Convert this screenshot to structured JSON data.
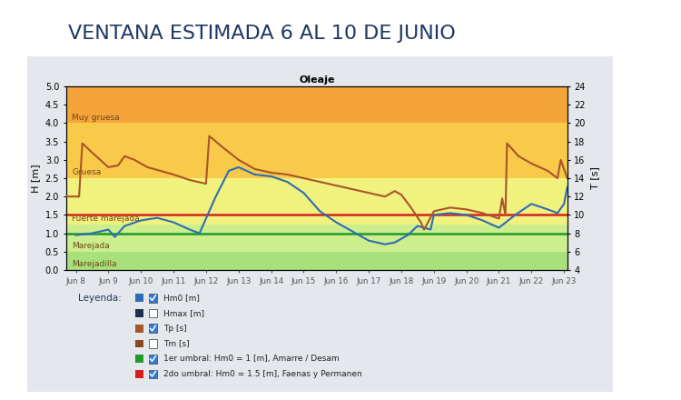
{
  "header": {
    "title": "VENTANA ESTIMADA 6 AL 10 DE JUNIO"
  },
  "chart_data": {
    "type": "line",
    "title": "Oleaje",
    "y_label": "H [m]",
    "y2_label": "T [s]",
    "xlim": [
      7.7,
      23.1
    ],
    "xticks": [
      {
        "value": 8,
        "label": "Jun 8"
      },
      {
        "value": 9,
        "label": "Jun 9"
      },
      {
        "value": 10,
        "label": "Jun 10"
      },
      {
        "value": 11,
        "label": "Jun 11"
      },
      {
        "value": 12,
        "label": "Jun 12"
      },
      {
        "value": 13,
        "label": "Jun 13"
      },
      {
        "value": 14,
        "label": "Jun 14"
      },
      {
        "value": 15,
        "label": "Jun 15"
      },
      {
        "value": 16,
        "label": "Jun 16"
      },
      {
        "value": 17,
        "label": "Jun 17"
      },
      {
        "value": 18,
        "label": "Jun 18"
      },
      {
        "value": 19,
        "label": "Jun 19"
      },
      {
        "value": 20,
        "label": "Jun 20"
      },
      {
        "value": 21,
        "label": "Jun 21"
      },
      {
        "value": 22,
        "label": "Jun 22"
      },
      {
        "value": 23,
        "label": "Jun 23"
      }
    ],
    "ylim": [
      0,
      5
    ],
    "yticks": [
      {
        "value": 0,
        "label": "0.0"
      },
      {
        "value": 0.5,
        "label": "0.5"
      },
      {
        "value": 1,
        "label": "1.0"
      },
      {
        "value": 1.5,
        "label": "1.5"
      },
      {
        "value": 2,
        "label": "2.0"
      },
      {
        "value": 2.5,
        "label": "2.5"
      },
      {
        "value": 3,
        "label": "3.0"
      },
      {
        "value": 3.5,
        "label": "3.5"
      },
      {
        "value": 4,
        "label": "4.0"
      },
      {
        "value": 4.5,
        "label": "4.5"
      },
      {
        "value": 5,
        "label": "5.0"
      }
    ],
    "y2lim": [
      4,
      24
    ],
    "y2ticks": [
      4,
      6,
      8,
      10,
      12,
      14,
      16,
      18,
      20,
      22,
      24
    ],
    "grid": false,
    "bands": [
      {
        "label": "Marejadilla",
        "from": 0,
        "to": 0.5,
        "color": "#a8e07c"
      },
      {
        "label": "Marejada",
        "from": 0.5,
        "to": 1.25,
        "color": "#cdee8c"
      },
      {
        "label": "Fuerte marejada",
        "from": 1.25,
        "to": 2.5,
        "color": "#f1f27e"
      },
      {
        "label": "Gruesa",
        "from": 2.5,
        "to": 4,
        "color": "#f9c94a"
      },
      {
        "label": "Muy gruesa",
        "from": 4,
        "to": 5,
        "color": "#f5a43a"
      }
    ],
    "legend_title": "Leyenda:",
    "series": [
      {
        "name": "Hm0 [m]",
        "color": "#2e6db4",
        "axis": "y",
        "x": [
          8.0,
          8.5,
          9.0,
          9.2,
          9.5,
          10.0,
          10.5,
          11.0,
          11.5,
          11.8,
          12.3,
          12.7,
          13.0,
          13.5,
          14.0,
          14.5,
          15.0,
          15.5,
          16.0,
          16.5,
          17.0,
          17.5,
          17.8,
          18.2,
          18.5,
          18.9,
          19.0,
          19.5,
          20.0,
          20.5,
          21.0,
          21.5,
          22.0,
          22.5,
          22.8,
          23.0,
          23.1
        ],
        "values": [
          0.95,
          1.0,
          1.1,
          0.9,
          1.2,
          1.35,
          1.42,
          1.3,
          1.1,
          1.0,
          2.0,
          2.7,
          2.8,
          2.6,
          2.55,
          2.4,
          2.1,
          1.6,
          1.3,
          1.05,
          0.8,
          0.7,
          0.75,
          0.95,
          1.2,
          1.1,
          1.5,
          1.55,
          1.5,
          1.35,
          1.15,
          1.5,
          1.8,
          1.65,
          1.55,
          1.8,
          2.25
        ]
      },
      {
        "name": "Hmax [m]",
        "color": "#1f2f4f",
        "checked": false
      },
      {
        "name": "Tp [s]",
        "color": "#a8552a",
        "axis": "y2",
        "x": [
          7.7,
          8.1,
          8.2,
          8.5,
          9.0,
          9.3,
          9.5,
          9.8,
          10.2,
          10.6,
          11.0,
          11.5,
          12.0,
          12.1,
          12.5,
          13.0,
          13.5,
          14.0,
          14.5,
          15.0,
          15.5,
          16.0,
          16.5,
          17.0,
          17.5,
          17.8,
          18.0,
          18.3,
          18.6,
          18.7,
          19.0,
          19.5,
          20.0,
          20.5,
          21.0,
          21.1,
          21.2,
          21.25,
          21.6,
          22.0,
          22.5,
          22.8,
          22.9,
          23.1
        ],
        "values": [
          12.0,
          12.0,
          17.8,
          16.8,
          15.2,
          15.4,
          16.4,
          16.0,
          15.2,
          14.8,
          14.4,
          13.8,
          13.4,
          18.6,
          17.4,
          16.0,
          15.0,
          14.6,
          14.4,
          14.0,
          13.6,
          13.2,
          12.8,
          12.4,
          12.0,
          12.6,
          12.2,
          10.8,
          9.2,
          8.4,
          10.4,
          10.8,
          10.6,
          10.2,
          9.6,
          11.8,
          10.0,
          17.8,
          16.4,
          15.6,
          14.8,
          14.0,
          16.0,
          14.0
        ]
      },
      {
        "name": "Tm [s]",
        "color": "#8b4a1c",
        "checked": false
      }
    ],
    "thresholds": [
      {
        "name": "1er umbral: Hm0 = 1 [m], Amarre / Desam",
        "value": 1,
        "color": "#1e9a2e"
      },
      {
        "name": "2do umbral: Hm0 = 1.5 [m], Faenas y Permanen",
        "value": 1.5,
        "color": "#d62020"
      }
    ]
  }
}
